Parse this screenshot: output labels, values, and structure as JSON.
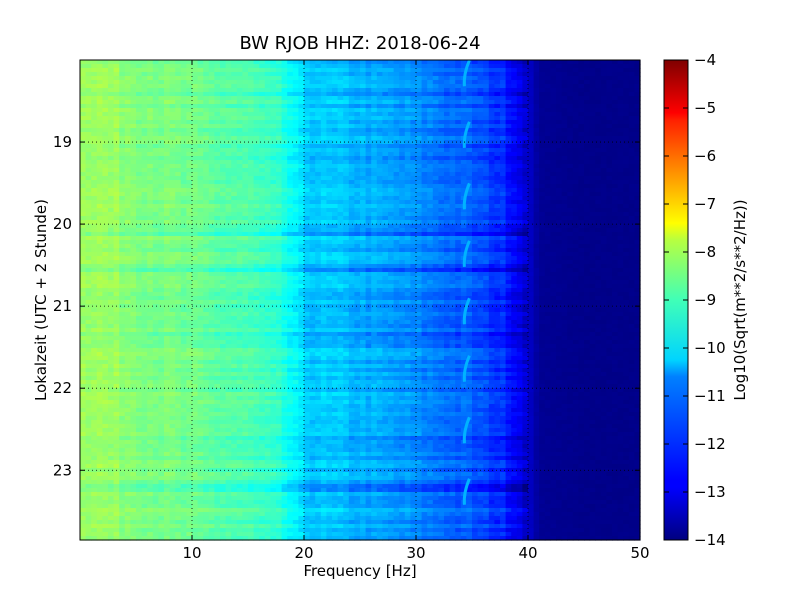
{
  "chart_data": {
    "type": "heatmap",
    "title": "BW RJOB HHZ: 2018-06-24",
    "xlabel": "Frequency [Hz]",
    "ylabel": "Lokalzeit (UTC + 2 Stunde)",
    "xlim": [
      0,
      50
    ],
    "ylim": [
      18.0,
      23.85
    ],
    "y_inverted": true,
    "x_ticks": [
      10,
      20,
      30,
      40,
      50
    ],
    "x_tick_labels": [
      "10",
      "20",
      "30",
      "40",
      "50"
    ],
    "y_ticks": [
      19,
      20,
      21,
      22,
      23
    ],
    "y_tick_labels": [
      "19",
      "20",
      "21",
      "22",
      "23"
    ],
    "grid": true,
    "colormap": "jet",
    "colorbar": {
      "label": "Log10(Sqrt(m**2/s**2/Hz))",
      "range": [
        -14,
        -4
      ],
      "ticks": [
        -4,
        -5,
        -6,
        -7,
        -8,
        -9,
        -10,
        -11,
        -12,
        -13,
        -14
      ],
      "tick_labels": [
        "−4",
        "−5",
        "−6",
        "−7",
        "−8",
        "−9",
        "−10",
        "−11",
        "−12",
        "−13",
        "−14"
      ]
    },
    "spectral_profile": {
      "frequency_hz": [
        0,
        5,
        10,
        15,
        18,
        20,
        25,
        30,
        35,
        38,
        40,
        41,
        45,
        50
      ],
      "level_log10": [
        -8.6,
        -8.9,
        -9.2,
        -9.5,
        -9.9,
        -10.7,
        -11.0,
        -11.4,
        -11.9,
        -12.4,
        -13.2,
        -13.8,
        -13.9,
        -13.9
      ]
    },
    "recurring_line": {
      "frequency_hz": 34.5,
      "level_log10": -11.0,
      "times_hours": [
        18.15,
        18.9,
        19.65,
        20.35,
        21.05,
        21.75,
        22.5,
        23.25
      ]
    }
  }
}
